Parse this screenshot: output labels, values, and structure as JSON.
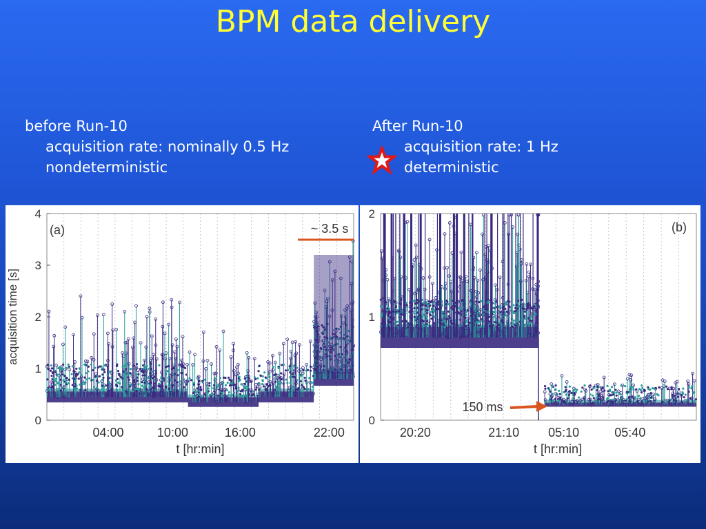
{
  "slide": {
    "title": "BPM data delivery",
    "left": {
      "heading": "before Run-10",
      "line1": "acquisition rate: nominally 0.5 Hz",
      "line2": "nondeterministic"
    },
    "right": {
      "heading": "After Run-10",
      "line1": "acquisition rate: 1 Hz",
      "line2": "deterministic"
    },
    "star_icon": "red-star-icon"
  },
  "colors": {
    "title": "#ffff33",
    "series": "#3a2a80",
    "accent": "#d9541e",
    "teal": "#2a9a9a"
  },
  "chart_data": [
    {
      "type": "scatter",
      "panel_label": "(a)",
      "ylabel": "acquisition time [s]",
      "xlabel": "t [hr:min]",
      "ylim": [
        0,
        4
      ],
      "yticks": [
        "0",
        "1",
        "2",
        "3",
        "4"
      ],
      "xticks": [
        "04:00",
        "10:00",
        "16:00",
        "22:00"
      ],
      "annotation": "~ 3.5 s",
      "segments": [
        {
          "from": 0.0,
          "to": 0.46,
          "baseline": 0.45
        },
        {
          "from": 0.46,
          "to": 0.69,
          "baseline": 0.35
        },
        {
          "from": 0.69,
          "to": 0.87,
          "baseline": 0.45
        },
        {
          "from": 0.87,
          "to": 1.0,
          "baseline": 0.8
        }
      ],
      "grid": true
    },
    {
      "type": "scatter",
      "panel_label": "(b)",
      "xlabel": "t [hr:min]",
      "ylim": [
        0,
        2
      ],
      "yticks": [
        "0",
        "1",
        "2"
      ],
      "xticks": [
        "20:20",
        "21:10",
        "05:10",
        "05:40"
      ],
      "annotation": "150 ms",
      "segments": [
        {
          "from": 0.0,
          "to": 0.5,
          "baseline": 0.8
        },
        {
          "from": 0.52,
          "to": 1.0,
          "baseline": 0.15
        }
      ],
      "grid": true
    }
  ]
}
